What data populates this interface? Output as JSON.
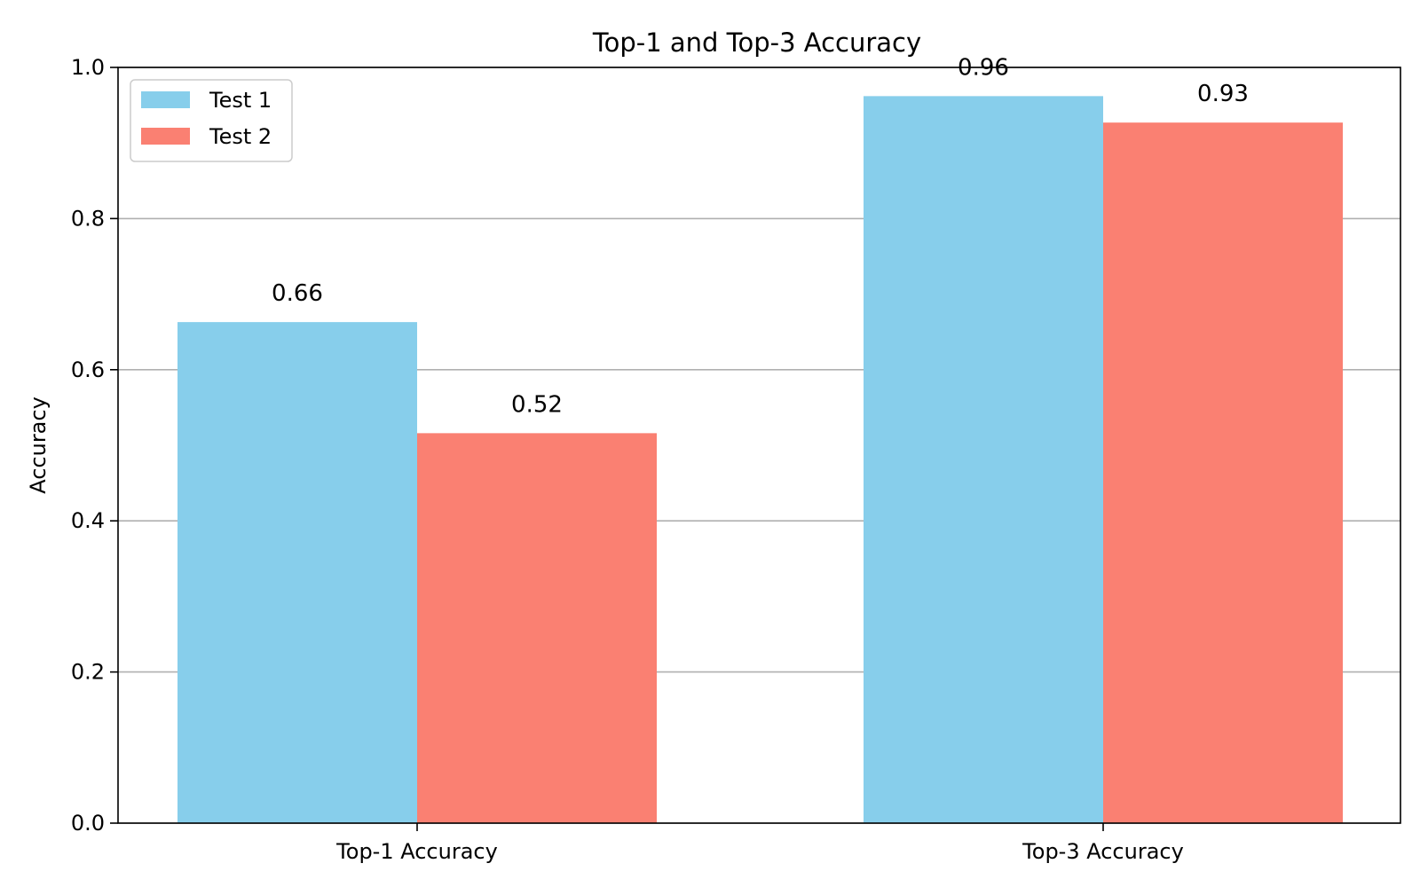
{
  "chart_data": {
    "type": "bar",
    "title": "Top-1 and Top-3 Accuracy",
    "xlabel": "",
    "ylabel": "Accuracy",
    "categories": [
      "Top-1 Accuracy",
      "Top-3 Accuracy"
    ],
    "series": [
      {
        "name": "Test 1",
        "values": [
          0.663,
          0.962
        ],
        "labels": [
          "0.66",
          "0.96"
        ],
        "color": "#87CEEB"
      },
      {
        "name": "Test 2",
        "values": [
          0.516,
          0.927
        ],
        "labels": [
          "0.52",
          "0.93"
        ],
        "color": "#FA8072"
      }
    ],
    "ylim": [
      0,
      1.0
    ],
    "yticks": [
      "0.0",
      "0.2",
      "0.4",
      "0.6",
      "0.8",
      "1.0"
    ],
    "grid": "y",
    "legend_position": "top-left"
  }
}
